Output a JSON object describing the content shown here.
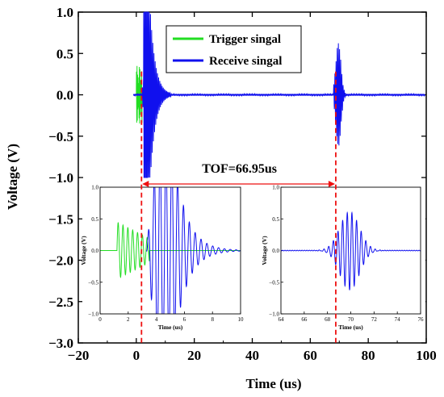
{
  "chart_data": {
    "type": "line",
    "title": "",
    "xlabel": "Time (us)",
    "ylabel": "Voltage (V)",
    "xlim": [
      -20,
      100
    ],
    "ylim": [
      -3.0,
      1.0
    ],
    "xticks": [
      -20,
      0,
      20,
      40,
      60,
      80,
      100
    ],
    "yticks": [
      -3.0,
      -2.5,
      -2.0,
      -1.5,
      -1.0,
      -0.5,
      0.0,
      0.5,
      1.0
    ],
    "legend": {
      "placement": "top-right-of-center",
      "entries": [
        {
          "name": "Trigger singal",
          "color": "#22dd22"
        },
        {
          "name": "Receive singal",
          "color": "#1010ee"
        }
      ]
    },
    "series": [
      {
        "name": "Trigger singal",
        "color": "#22dd22",
        "description_points": {
          "onset_us": 0.0,
          "burst_end_us": 2.0,
          "peak_v": 0.28,
          "trough_v": -0.42
        }
      },
      {
        "name": "Receive singal",
        "color": "#1010ee",
        "bursts": [
          {
            "start_us": 1.8,
            "end_us": 6.0,
            "peak_v": 1.0,
            "trough_v": -1.0,
            "clipped": true
          },
          {
            "start_us": 68.0,
            "end_us": 72.0,
            "peak_v": 0.57,
            "trough_v": -0.65
          }
        ]
      }
    ],
    "markers": {
      "start_line_x": 1.8,
      "end_line_x": 68.8,
      "annotation": "TOF=66.95us",
      "color": "#ee1111"
    },
    "insets": [
      {
        "xlabel": "Time (us)",
        "ylabel": "Voltage (V)",
        "xlim": [
          0,
          10
        ],
        "ylim": [
          -1.0,
          1.0
        ],
        "xticks": [
          0,
          2,
          4,
          6,
          8,
          10
        ],
        "yticks": [
          -1.0,
          -0.5,
          0.0,
          0.5,
          1.0
        ]
      },
      {
        "xlabel": "Time (us)",
        "ylabel": "Voltage (V)",
        "xlim": [
          64,
          76
        ],
        "ylim": [
          -1.0,
          1.0
        ],
        "xticks": [
          64,
          66,
          68,
          70,
          72,
          74,
          76
        ],
        "yticks": [
          -1.0,
          -0.5,
          0.0,
          0.5,
          1.0
        ]
      }
    ]
  }
}
